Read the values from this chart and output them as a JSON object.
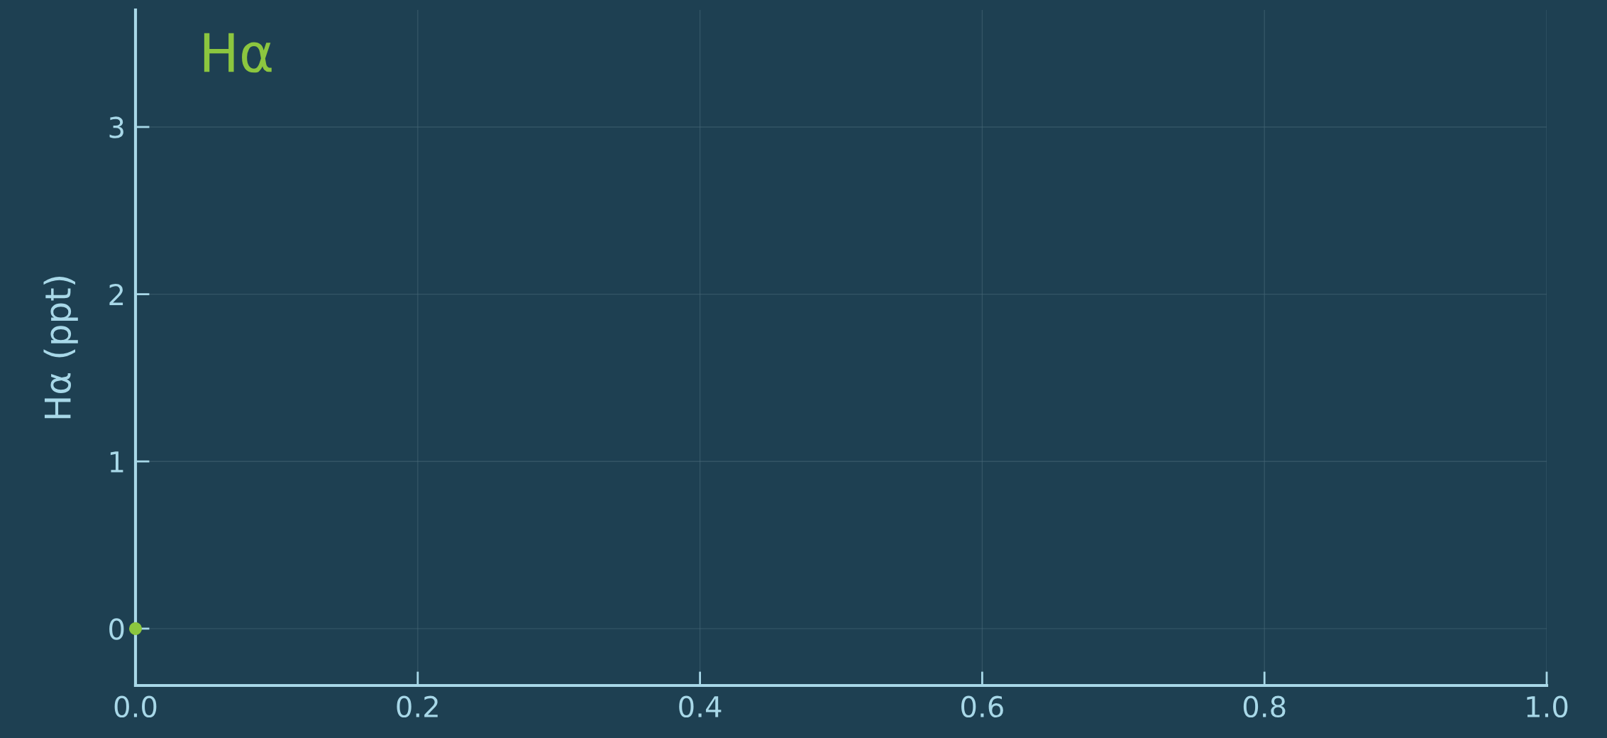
{
  "chart_data": {
    "type": "scatter",
    "ylabel": "Hα (ppt)",
    "series": [
      {
        "name": "Hα",
        "color": "#8cc63f",
        "x": [
          0
        ],
        "values": [
          0
        ]
      }
    ],
    "xlim": [
      0,
      1
    ],
    "xticks": [
      {
        "value": 0,
        "label": "0.0"
      },
      0.2,
      0.4,
      0.6,
      0.8,
      {
        "value": 1,
        "label": "1.0"
      }
    ],
    "ylim": [
      -0.34,
      3.7
    ],
    "yticks": [
      0,
      1,
      2,
      3
    ],
    "grid": true,
    "marker": "circle"
  }
}
